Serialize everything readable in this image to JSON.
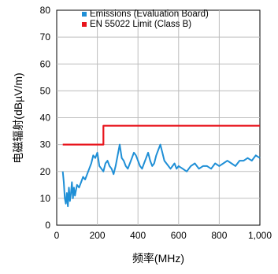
{
  "chart_data": {
    "type": "line",
    "title": "",
    "xlabel": "频率(MHz)",
    "ylabel": "电磁辐射(dBµV/m)",
    "xlim": [
      0,
      1000
    ],
    "ylim": [
      0,
      80
    ],
    "x_ticks": [
      0,
      200,
      400,
      600,
      800,
      1000
    ],
    "x_tick_labels": [
      "0",
      "200",
      "400",
      "600",
      "800",
      "1,000"
    ],
    "y_ticks": [
      0,
      10,
      20,
      30,
      40,
      50,
      60,
      70,
      80
    ],
    "y_tick_labels": [
      "0",
      "10",
      "20",
      "30",
      "40",
      "50",
      "60",
      "70",
      "80"
    ],
    "grid": true,
    "legend_position": "top-left",
    "series": [
      {
        "name": "Emissions (Evaluation Board)",
        "color": "#1f8fd6",
        "x": [
          30,
          35,
          40,
          45,
          50,
          55,
          60,
          65,
          70,
          75,
          80,
          85,
          90,
          95,
          100,
          110,
          120,
          130,
          140,
          150,
          160,
          170,
          180,
          190,
          200,
          210,
          220,
          230,
          240,
          250,
          260,
          270,
          280,
          290,
          300,
          310,
          320,
          330,
          340,
          350,
          360,
          370,
          380,
          390,
          400,
          410,
          420,
          430,
          440,
          450,
          460,
          470,
          480,
          490,
          500,
          510,
          520,
          530,
          540,
          550,
          560,
          570,
          580,
          590,
          600,
          620,
          640,
          660,
          680,
          700,
          720,
          740,
          760,
          780,
          800,
          820,
          840,
          860,
          880,
          900,
          920,
          940,
          960,
          980,
          1000
        ],
        "y": [
          20,
          16,
          10,
          8,
          12,
          7,
          14,
          9,
          12,
          16,
          10,
          14,
          11,
          13,
          15,
          14,
          16,
          18,
          17,
          19,
          21,
          23,
          26,
          25,
          27,
          22,
          21,
          20,
          23,
          24,
          22,
          21,
          19,
          22,
          26,
          30,
          25,
          24,
          22,
          21,
          23,
          25,
          27,
          26,
          24,
          22,
          21,
          23,
          25,
          27,
          24,
          22,
          23,
          26,
          28,
          30,
          27,
          24,
          23,
          22,
          21,
          22,
          23,
          21,
          22,
          21,
          20,
          22,
          23,
          21,
          22,
          22,
          21,
          23,
          22,
          23,
          24,
          23,
          22,
          24,
          24,
          25,
          24,
          26,
          25
        ]
      },
      {
        "name": "EN 55022 Limit (Class B)",
        "color": "#e8141c",
        "x": [
          30,
          230,
          230,
          1000
        ],
        "y": [
          30,
          30,
          37,
          37
        ]
      }
    ]
  }
}
